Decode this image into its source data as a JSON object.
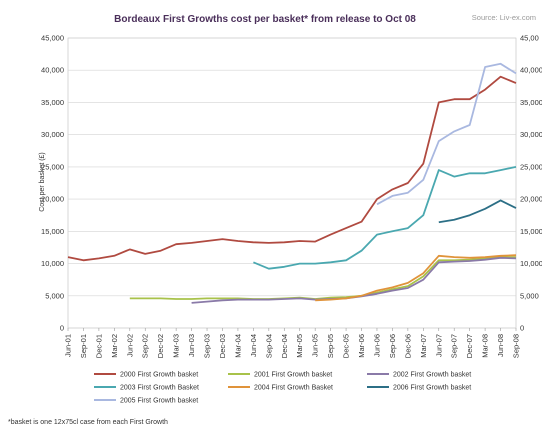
{
  "chart_data": {
    "type": "line",
    "title": "Bordeaux First Growths cost per basket* from release to Oct 08",
    "source": "Source: Liv-ex.com",
    "ylabel": "Cost per basket (£)",
    "ylim": [
      0,
      45000
    ],
    "yticks": [
      0,
      5000,
      10000,
      15000,
      20000,
      25000,
      30000,
      35000,
      40000,
      45000
    ],
    "ytick_labels": [
      "0",
      "5,000",
      "10,000",
      "15,000",
      "20,000",
      "25,000",
      "30,000",
      "35,000",
      "40,000",
      "45,000"
    ],
    "right_ytick_labels": [
      "0",
      "5,000",
      "10,000",
      "15,000",
      "20,000",
      "25,000",
      "30,000",
      "35,000",
      "40,000",
      "45,00"
    ],
    "xlim": [
      "Jun-01",
      "Sep-08"
    ],
    "xticks": [
      "Jun-01",
      "Sep-01",
      "Dec-01",
      "Mar-02",
      "Jun-02",
      "Sep-02",
      "Dec-02",
      "Mar-03",
      "Jun-03",
      "Sep-03",
      "Dec-03",
      "Mar-04",
      "Jun-04",
      "Sep-04",
      "Dec-04",
      "Mar-05",
      "Jun-05",
      "Sep-05",
      "Dec-05",
      "Mar-06",
      "Jun-06",
      "Sep-06",
      "Dec-06",
      "Mar-07",
      "Jun-07",
      "Sep-07",
      "Dec-07",
      "Mar-08",
      "Jun-08",
      "Sep-08"
    ],
    "grid": true,
    "legend_position": "bottom",
    "footnote": "*basket is one 12x75cl case from each First Growth",
    "series": [
      {
        "name": "2000 First Growth basket",
        "color": "#b04a40",
        "x": [
          "Jun-01",
          "Sep-01",
          "Dec-01",
          "Mar-02",
          "Jun-02",
          "Sep-02",
          "Dec-02",
          "Mar-03",
          "Jun-03",
          "Sep-03",
          "Dec-03",
          "Mar-04",
          "Jun-04",
          "Sep-04",
          "Dec-04",
          "Mar-05",
          "Jun-05",
          "Sep-05",
          "Dec-05",
          "Mar-06",
          "Jun-06",
          "Sep-06",
          "Dec-06",
          "Mar-07",
          "Jun-07",
          "Sep-07",
          "Dec-07",
          "Mar-08",
          "Jun-08",
          "Sep-08"
        ],
        "values": [
          11000,
          10500,
          10800,
          11200,
          12200,
          11500,
          12000,
          13000,
          13200,
          13500,
          13800,
          13500,
          13300,
          13200,
          13300,
          13500,
          13400,
          14500,
          15500,
          16500,
          20000,
          21500,
          22500,
          25500,
          35000,
          35500,
          35500,
          37000,
          39000,
          38000
        ]
      },
      {
        "name": "2001 First Growth basket",
        "color": "#a8c24a",
        "x": [
          "Jun-02",
          "Sep-02",
          "Dec-02",
          "Mar-03",
          "Jun-03",
          "Sep-03",
          "Dec-03",
          "Mar-04",
          "Jun-04",
          "Sep-04",
          "Dec-04",
          "Mar-05",
          "Jun-05",
          "Sep-05",
          "Dec-05",
          "Mar-06",
          "Jun-06",
          "Sep-06",
          "Dec-06",
          "Mar-07",
          "Jun-07",
          "Sep-07",
          "Dec-07",
          "Mar-08",
          "Jun-08",
          "Sep-08"
        ],
        "values": [
          4600,
          4600,
          4600,
          4500,
          4500,
          4600,
          4600,
          4600,
          4500,
          4500,
          4600,
          4700,
          4500,
          4700,
          4800,
          5000,
          5500,
          6000,
          6500,
          8000,
          10500,
          10500,
          10600,
          10800,
          11000,
          11000
        ]
      },
      {
        "name": "2002 First Growth basket",
        "color": "#8a7aa8",
        "x": [
          "Jun-03",
          "Sep-03",
          "Dec-03",
          "Mar-04",
          "Jun-04",
          "Sep-04",
          "Dec-04",
          "Mar-05",
          "Jun-05",
          "Sep-05",
          "Dec-05",
          "Mar-06",
          "Jun-06",
          "Sep-06",
          "Dec-06",
          "Mar-07",
          "Jun-07",
          "Sep-07",
          "Dec-07",
          "Mar-08",
          "Jun-08",
          "Sep-08"
        ],
        "values": [
          3900,
          4100,
          4300,
          4400,
          4400,
          4400,
          4500,
          4600,
          4400,
          4500,
          4600,
          4900,
          5300,
          5800,
          6200,
          7500,
          10200,
          10300,
          10400,
          10600,
          10900,
          10800
        ]
      },
      {
        "name": "2003 First Growth Basket",
        "color": "#4aa8b0",
        "x": [
          "Jun-04",
          "Sep-04",
          "Dec-04",
          "Mar-05",
          "Jun-05",
          "Sep-05",
          "Dec-05",
          "Mar-06",
          "Jun-06",
          "Sep-06",
          "Dec-06",
          "Mar-07",
          "Jun-07",
          "Sep-07",
          "Dec-07",
          "Mar-08",
          "Jun-08",
          "Sep-08"
        ],
        "values": [
          10200,
          9200,
          9500,
          10000,
          10000,
          10200,
          10500,
          12000,
          14500,
          15000,
          15500,
          17500,
          24500,
          23500,
          24000,
          24000,
          24500,
          25000
        ]
      },
      {
        "name": "2004 First Growth Basket",
        "color": "#e0933a",
        "x": [
          "Jun-05",
          "Sep-05",
          "Dec-05",
          "Mar-06",
          "Jun-06",
          "Sep-06",
          "Dec-06",
          "Mar-07",
          "Jun-07",
          "Sep-07",
          "Dec-07",
          "Mar-08",
          "Jun-08",
          "Sep-08"
        ],
        "values": [
          4300,
          4400,
          4600,
          5000,
          5800,
          6300,
          7000,
          8500,
          11200,
          11000,
          10900,
          11000,
          11200,
          11300
        ]
      },
      {
        "name": "2006 First Growth basket",
        "color": "#2c6f86",
        "x": [
          "Jun-07",
          "Sep-07",
          "Dec-07",
          "Mar-08",
          "Jun-08",
          "Sep-08"
        ],
        "values": [
          16400,
          16800,
          17500,
          18500,
          19800,
          18600
        ]
      },
      {
        "name": "2005 First Growth basket",
        "color": "#a9b8e0",
        "x": [
          "Jun-06",
          "Sep-06",
          "Dec-06",
          "Mar-07",
          "Jun-07",
          "Sep-07",
          "Dec-07",
          "Mar-08",
          "Jun-08",
          "Sep-08"
        ],
        "values": [
          19200,
          20500,
          21000,
          23000,
          29000,
          30500,
          31500,
          40500,
          41000,
          39500
        ]
      }
    ]
  }
}
